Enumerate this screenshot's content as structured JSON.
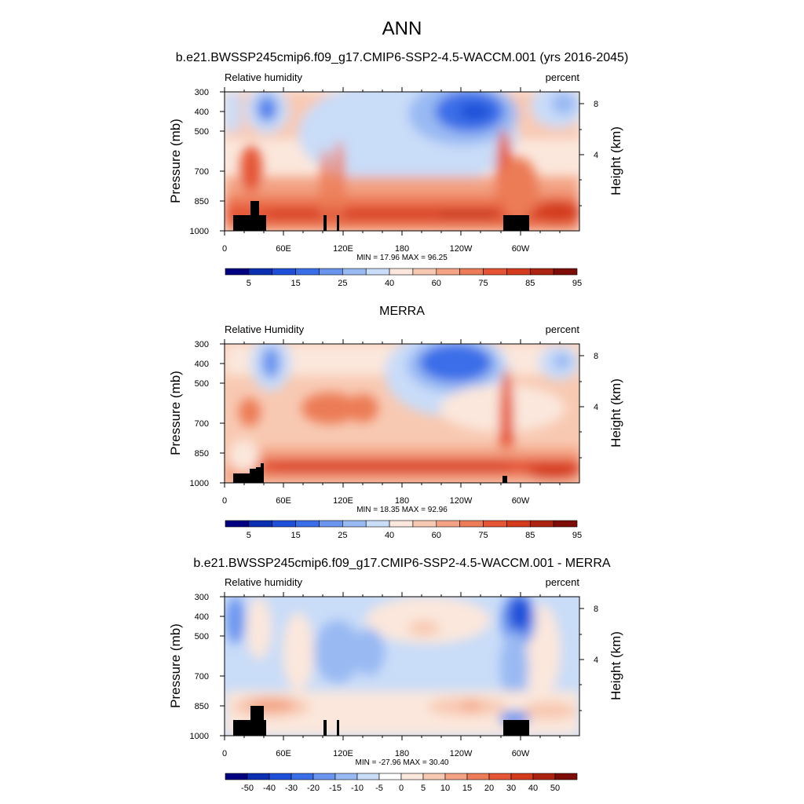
{
  "figure": {
    "title": "ANN"
  },
  "colorbar_colors": {
    "full": [
      "#000080",
      "#0a2fb3",
      "#1e4fd8",
      "#3a6ee8",
      "#6a95ef",
      "#99b9f3",
      "#c9dcf8",
      "#fbe7dc",
      "#f8c9b2",
      "#f3a283",
      "#ec7b57",
      "#e55434",
      "#d43a1c",
      "#ac2411",
      "#7d0d06"
    ],
    "diff": [
      "#000080",
      "#0a2fb3",
      "#1e4fd8",
      "#3a6ee8",
      "#6a95ef",
      "#99b9f3",
      "#c9dcf8",
      "#ffffff",
      "#fbe7dc",
      "#f8c9b2",
      "#f3a283",
      "#ec7b57",
      "#e55434",
      "#d43a1c",
      "#ac2411",
      "#7d0d06"
    ]
  },
  "chart_data": [
    {
      "type": "heatmap",
      "title": "b.e21.BWSSP245cmip6.f09_g17.CMIP6-SSP2-4.5-WACCM.001 (yrs 2016-2045)",
      "left_label": "Relative humidity",
      "right_label": "percent",
      "ylabel": "Pressure (mb)",
      "y2label": "Height (km)",
      "x_ticks": [
        "0",
        "60E",
        "120E",
        "180",
        "120W",
        "60W"
      ],
      "y_ticks": [
        "300",
        "400",
        "500",
        "700",
        "850",
        "1000"
      ],
      "y2_ticks": [
        "8",
        "4"
      ],
      "stats": "MIN =  17.96  MAX =  96.25",
      "colorbar_labels": [
        "5",
        "15",
        "25",
        "40",
        "60",
        "75",
        "85",
        "95"
      ]
    },
    {
      "type": "heatmap",
      "title": "MERRA",
      "left_label": "Relative Humidity",
      "right_label": "percent",
      "ylabel": "Pressure (mb)",
      "y2label": "Height (km)",
      "x_ticks": [
        "0",
        "60E",
        "120E",
        "180",
        "120W",
        "60W"
      ],
      "y_ticks": [
        "300",
        "400",
        "500",
        "700",
        "850",
        "1000"
      ],
      "y2_ticks": [
        "8",
        "4"
      ],
      "stats": "MIN =  18.35  MAX =  92.96",
      "colorbar_labels": [
        "5",
        "15",
        "25",
        "40",
        "60",
        "75",
        "85",
        "95"
      ]
    },
    {
      "type": "heatmap",
      "title": "b.e21.BWSSP245cmip6.f09_g17.CMIP6-SSP2-4.5-WACCM.001 - MERRA",
      "left_label": "Relative humidity",
      "right_label": "percent",
      "ylabel": "Pressure (mb)",
      "y2label": "Height (km)",
      "x_ticks": [
        "0",
        "60E",
        "120E",
        "180",
        "120W",
        "60W"
      ],
      "y_ticks": [
        "300",
        "400",
        "500",
        "700",
        "850",
        "1000"
      ],
      "y2_ticks": [
        "8",
        "4"
      ],
      "stats": "MIN = -27.96  MAX =  30.40",
      "colorbar_labels": [
        "-50",
        "-40",
        "-30",
        "-20",
        "-15",
        "-10",
        "-5",
        "0",
        "5",
        "10",
        "15",
        "20",
        "30",
        "40",
        "50"
      ]
    }
  ]
}
